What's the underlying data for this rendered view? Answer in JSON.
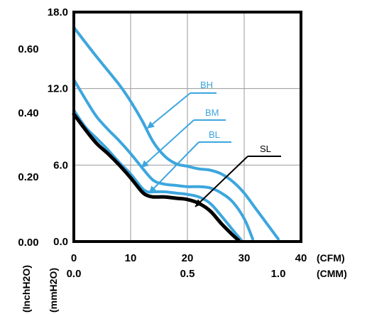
{
  "chart_data": {
    "type": "line",
    "x": {
      "unit_label": "(CFM)",
      "range": [
        0,
        40
      ],
      "ticks": [
        "0",
        "10",
        "20",
        "30",
        "40"
      ],
      "secondary_unit_label": "(CMM)",
      "secondary_ticks": [
        "0.0",
        "0.5",
        "1.0"
      ]
    },
    "y": {
      "unit_label": "(mmH2O)",
      "range": [
        0,
        18
      ],
      "ticks": [
        "0.0",
        "6.0",
        "12.0",
        "18.0"
      ],
      "secondary_unit_label": "(InchH2O)",
      "secondary_ticks": [
        "0.00",
        "0.20",
        "0.40",
        "0.60"
      ]
    },
    "grid": true,
    "series": [
      {
        "name": "BH",
        "color": "#3DA6DE",
        "points": [
          [
            0,
            16.8
          ],
          [
            4,
            14.5
          ],
          [
            8,
            12.3
          ],
          [
            10,
            11.0
          ],
          [
            12,
            9.5
          ],
          [
            14,
            7.8
          ],
          [
            16,
            6.7
          ],
          [
            18,
            6.1
          ],
          [
            20,
            5.9
          ],
          [
            22,
            5.7
          ],
          [
            24,
            5.6
          ],
          [
            26,
            5.3
          ],
          [
            28,
            4.7
          ],
          [
            30,
            3.8
          ],
          [
            32,
            2.6
          ],
          [
            34,
            1.4
          ],
          [
            36,
            0.2
          ]
        ]
      },
      {
        "name": "BM",
        "color": "#3DA6DE",
        "points": [
          [
            0,
            12.7
          ],
          [
            2,
            11.2
          ],
          [
            4,
            9.8
          ],
          [
            6,
            8.8
          ],
          [
            8,
            7.9
          ],
          [
            10,
            6.9
          ],
          [
            12,
            5.8
          ],
          [
            14,
            4.8
          ],
          [
            16,
            4.5
          ],
          [
            18,
            4.4
          ],
          [
            20,
            4.3
          ],
          [
            22,
            4.3
          ],
          [
            24,
            4.2
          ],
          [
            26,
            3.8
          ],
          [
            28,
            3.1
          ],
          [
            30,
            1.8
          ],
          [
            31.5,
            0.2
          ]
        ]
      },
      {
        "name": "BL",
        "color": "#3DA6DE",
        "points": [
          [
            0,
            10.3
          ],
          [
            2,
            9.0
          ],
          [
            4,
            8.1
          ],
          [
            6,
            7.2
          ],
          [
            8,
            6.2
          ],
          [
            10,
            5.3
          ],
          [
            12,
            4.2
          ],
          [
            13,
            3.9
          ],
          [
            14,
            3.9
          ],
          [
            16,
            3.9
          ],
          [
            18,
            3.8
          ],
          [
            20,
            3.7
          ],
          [
            22,
            3.5
          ],
          [
            24,
            3.0
          ],
          [
            26,
            2.0
          ],
          [
            28,
            0.9
          ],
          [
            29.5,
            0.1
          ]
        ]
      },
      {
        "name": "SL",
        "color": "#000000",
        "points": [
          [
            0,
            10.0
          ],
          [
            2,
            8.8
          ],
          [
            4,
            7.7
          ],
          [
            6,
            6.9
          ],
          [
            8,
            6.0
          ],
          [
            10,
            5.0
          ],
          [
            12,
            3.9
          ],
          [
            13,
            3.6
          ],
          [
            14,
            3.5
          ],
          [
            16,
            3.5
          ],
          [
            18,
            3.4
          ],
          [
            20,
            3.3
          ],
          [
            22,
            3.0
          ],
          [
            24,
            2.4
          ],
          [
            26,
            1.4
          ],
          [
            28,
            0.5
          ],
          [
            29,
            0.1
          ]
        ]
      }
    ],
    "annotations": [
      {
        "text": "BH",
        "color": "#3DA6DE"
      },
      {
        "text": "BM",
        "color": "#3DA6DE"
      },
      {
        "text": "BL",
        "color": "#3DA6DE"
      },
      {
        "text": "SL",
        "color": "#000000"
      }
    ]
  }
}
